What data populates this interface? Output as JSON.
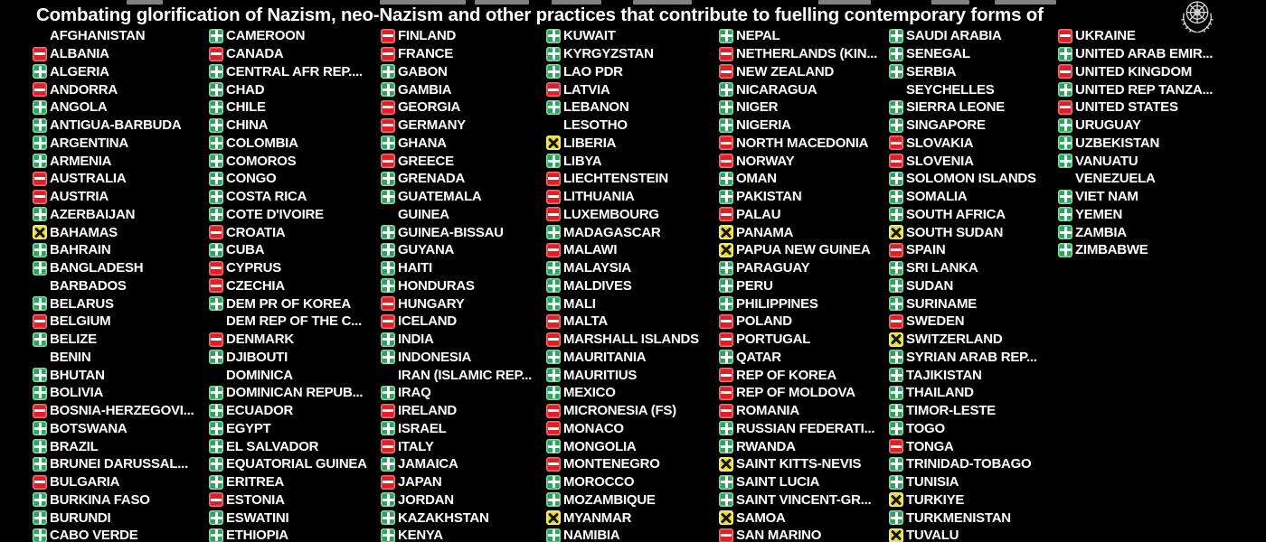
{
  "title": "Combating glorification of Nazism, neo-Nazism and other practices that contribute to fuelling contemporary forms of",
  "icons": {
    "yes": "green-plus-icon",
    "no": "red-minus-icon",
    "abstain": "yellow-x-icon",
    "logo": "un-emblem-icon"
  },
  "colors": {
    "background": "#000000",
    "text": "#ffffff",
    "yes": "#2aa45c",
    "no": "#de1f26",
    "abstain": "#e8df2e"
  },
  "columns": [
    {
      "rows": [
        {
          "name": "AFGHANISTAN",
          "vote": "none"
        },
        {
          "name": "ALBANIA",
          "vote": "no"
        },
        {
          "name": "ALGERIA",
          "vote": "yes"
        },
        {
          "name": "ANDORRA",
          "vote": "no"
        },
        {
          "name": "ANGOLA",
          "vote": "yes"
        },
        {
          "name": "ANTIGUA-BARBUDA",
          "vote": "yes"
        },
        {
          "name": "ARGENTINA",
          "vote": "yes"
        },
        {
          "name": "ARMENIA",
          "vote": "yes"
        },
        {
          "name": "AUSTRALIA",
          "vote": "no"
        },
        {
          "name": "AUSTRIA",
          "vote": "no"
        },
        {
          "name": "AZERBAIJAN",
          "vote": "yes"
        },
        {
          "name": "BAHAMAS",
          "vote": "abstain"
        },
        {
          "name": "BAHRAIN",
          "vote": "yes"
        },
        {
          "name": "BANGLADESH",
          "vote": "yes"
        },
        {
          "name": "BARBADOS",
          "vote": "none"
        },
        {
          "name": "BELARUS",
          "vote": "yes"
        },
        {
          "name": "BELGIUM",
          "vote": "no"
        },
        {
          "name": "BELIZE",
          "vote": "yes"
        },
        {
          "name": "BENIN",
          "vote": "none"
        },
        {
          "name": "BHUTAN",
          "vote": "yes"
        },
        {
          "name": "BOLIVIA",
          "vote": "yes"
        },
        {
          "name": "BOSNIA-HERZEGOVI...",
          "vote": "no"
        },
        {
          "name": "BOTSWANA",
          "vote": "yes"
        },
        {
          "name": "BRAZIL",
          "vote": "yes"
        },
        {
          "name": "BRUNEI DARUSSAL...",
          "vote": "yes"
        },
        {
          "name": "BULGARIA",
          "vote": "no"
        },
        {
          "name": "BURKINA FASO",
          "vote": "yes"
        },
        {
          "name": "BURUNDI",
          "vote": "yes"
        },
        {
          "name": "CABO VERDE",
          "vote": "yes"
        }
      ]
    },
    {
      "rows": [
        {
          "name": "CAMEROON",
          "vote": "yes"
        },
        {
          "name": "CANADA",
          "vote": "no"
        },
        {
          "name": "CENTRAL AFR REP....",
          "vote": "yes"
        },
        {
          "name": "CHAD",
          "vote": "yes"
        },
        {
          "name": "CHILE",
          "vote": "yes"
        },
        {
          "name": "CHINA",
          "vote": "yes"
        },
        {
          "name": "COLOMBIA",
          "vote": "yes"
        },
        {
          "name": "COMOROS",
          "vote": "yes"
        },
        {
          "name": "CONGO",
          "vote": "yes"
        },
        {
          "name": "COSTA RICA",
          "vote": "yes"
        },
        {
          "name": "COTE D'IVOIRE",
          "vote": "yes"
        },
        {
          "name": "CROATIA",
          "vote": "no"
        },
        {
          "name": "CUBA",
          "vote": "yes"
        },
        {
          "name": "CYPRUS",
          "vote": "no"
        },
        {
          "name": "CZECHIA",
          "vote": "no"
        },
        {
          "name": "DEM PR OF KOREA",
          "vote": "yes"
        },
        {
          "name": "DEM REP OF THE C...",
          "vote": "none"
        },
        {
          "name": "DENMARK",
          "vote": "no"
        },
        {
          "name": "DJIBOUTI",
          "vote": "yes"
        },
        {
          "name": "DOMINICA",
          "vote": "none"
        },
        {
          "name": "DOMINICAN REPUB...",
          "vote": "yes"
        },
        {
          "name": "ECUADOR",
          "vote": "yes"
        },
        {
          "name": "EGYPT",
          "vote": "yes"
        },
        {
          "name": "EL SALVADOR",
          "vote": "yes"
        },
        {
          "name": "EQUATORIAL GUINEA",
          "vote": "yes"
        },
        {
          "name": "ERITREA",
          "vote": "yes"
        },
        {
          "name": "ESTONIA",
          "vote": "no"
        },
        {
          "name": "ESWATINI",
          "vote": "yes"
        },
        {
          "name": "ETHIOPIA",
          "vote": "yes"
        }
      ]
    },
    {
      "rows": [
        {
          "name": "FINLAND",
          "vote": "no"
        },
        {
          "name": "FRANCE",
          "vote": "no"
        },
        {
          "name": "GABON",
          "vote": "yes"
        },
        {
          "name": "GAMBIA",
          "vote": "yes"
        },
        {
          "name": "GEORGIA",
          "vote": "no"
        },
        {
          "name": "GERMANY",
          "vote": "no"
        },
        {
          "name": "GHANA",
          "vote": "yes"
        },
        {
          "name": "GREECE",
          "vote": "no"
        },
        {
          "name": "GRENADA",
          "vote": "yes"
        },
        {
          "name": "GUATEMALA",
          "vote": "yes"
        },
        {
          "name": "GUINEA",
          "vote": "none"
        },
        {
          "name": "GUINEA-BISSAU",
          "vote": "yes"
        },
        {
          "name": "GUYANA",
          "vote": "yes"
        },
        {
          "name": "HAITI",
          "vote": "yes"
        },
        {
          "name": "HONDURAS",
          "vote": "yes"
        },
        {
          "name": "HUNGARY",
          "vote": "no"
        },
        {
          "name": "ICELAND",
          "vote": "no"
        },
        {
          "name": "INDIA",
          "vote": "yes"
        },
        {
          "name": "INDONESIA",
          "vote": "yes"
        },
        {
          "name": "IRAN (ISLAMIC REP...",
          "vote": "none"
        },
        {
          "name": "IRAQ",
          "vote": "yes"
        },
        {
          "name": "IRELAND",
          "vote": "no"
        },
        {
          "name": "ISRAEL",
          "vote": "yes"
        },
        {
          "name": "ITALY",
          "vote": "no"
        },
        {
          "name": "JAMAICA",
          "vote": "yes"
        },
        {
          "name": "JAPAN",
          "vote": "no"
        },
        {
          "name": "JORDAN",
          "vote": "yes"
        },
        {
          "name": "KAZAKHSTAN",
          "vote": "yes"
        },
        {
          "name": "KENYA",
          "vote": "yes"
        }
      ]
    },
    {
      "rows": [
        {
          "name": "KUWAIT",
          "vote": "yes"
        },
        {
          "name": "KYRGYZSTAN",
          "vote": "yes"
        },
        {
          "name": "LAO PDR",
          "vote": "yes"
        },
        {
          "name": "LATVIA",
          "vote": "no"
        },
        {
          "name": "LEBANON",
          "vote": "yes"
        },
        {
          "name": "LESOTHO",
          "vote": "none"
        },
        {
          "name": "LIBERIA",
          "vote": "abstain"
        },
        {
          "name": "LIBYA",
          "vote": "yes"
        },
        {
          "name": "LIECHTENSTEIN",
          "vote": "no"
        },
        {
          "name": "LITHUANIA",
          "vote": "no"
        },
        {
          "name": "LUXEMBOURG",
          "vote": "no"
        },
        {
          "name": "MADAGASCAR",
          "vote": "yes"
        },
        {
          "name": "MALAWI",
          "vote": "no"
        },
        {
          "name": "MALAYSIA",
          "vote": "yes"
        },
        {
          "name": "MALDIVES",
          "vote": "yes"
        },
        {
          "name": "MALI",
          "vote": "yes"
        },
        {
          "name": "MALTA",
          "vote": "no"
        },
        {
          "name": "MARSHALL ISLANDS",
          "vote": "no"
        },
        {
          "name": "MAURITANIA",
          "vote": "yes"
        },
        {
          "name": "MAURITIUS",
          "vote": "yes"
        },
        {
          "name": "MEXICO",
          "vote": "yes"
        },
        {
          "name": "MICRONESIA (FS)",
          "vote": "no"
        },
        {
          "name": "MONACO",
          "vote": "no"
        },
        {
          "name": "MONGOLIA",
          "vote": "yes"
        },
        {
          "name": "MONTENEGRO",
          "vote": "no"
        },
        {
          "name": "MOROCCO",
          "vote": "yes"
        },
        {
          "name": "MOZAMBIQUE",
          "vote": "yes"
        },
        {
          "name": "MYANMAR",
          "vote": "abstain"
        },
        {
          "name": "NAMIBIA",
          "vote": "yes"
        }
      ]
    },
    {
      "rows": [
        {
          "name": "NEPAL",
          "vote": "yes"
        },
        {
          "name": "NETHERLANDS (KIN...",
          "vote": "no"
        },
        {
          "name": "NEW ZEALAND",
          "vote": "no"
        },
        {
          "name": "NICARAGUA",
          "vote": "yes"
        },
        {
          "name": "NIGER",
          "vote": "yes"
        },
        {
          "name": "NIGERIA",
          "vote": "yes"
        },
        {
          "name": "NORTH MACEDONIA",
          "vote": "no"
        },
        {
          "name": "NORWAY",
          "vote": "no"
        },
        {
          "name": "OMAN",
          "vote": "yes"
        },
        {
          "name": "PAKISTAN",
          "vote": "yes"
        },
        {
          "name": "PALAU",
          "vote": "no"
        },
        {
          "name": "PANAMA",
          "vote": "abstain"
        },
        {
          "name": "PAPUA NEW GUINEA",
          "vote": "abstain"
        },
        {
          "name": "PARAGUAY",
          "vote": "yes"
        },
        {
          "name": "PERU",
          "vote": "yes"
        },
        {
          "name": "PHILIPPINES",
          "vote": "yes"
        },
        {
          "name": "POLAND",
          "vote": "no"
        },
        {
          "name": "PORTUGAL",
          "vote": "no"
        },
        {
          "name": "QATAR",
          "vote": "yes"
        },
        {
          "name": "REP OF KOREA",
          "vote": "no"
        },
        {
          "name": "REP OF MOLDOVA",
          "vote": "no"
        },
        {
          "name": "ROMANIA",
          "vote": "no"
        },
        {
          "name": "RUSSIAN FEDERATI...",
          "vote": "yes"
        },
        {
          "name": "RWANDA",
          "vote": "yes"
        },
        {
          "name": "SAINT KITTS-NEVIS",
          "vote": "abstain"
        },
        {
          "name": "SAINT LUCIA",
          "vote": "yes"
        },
        {
          "name": "SAINT VINCENT-GR...",
          "vote": "yes"
        },
        {
          "name": "SAMOA",
          "vote": "abstain"
        },
        {
          "name": "SAN MARINO",
          "vote": "no"
        }
      ]
    },
    {
      "rows": [
        {
          "name": "SAUDI ARABIA",
          "vote": "yes"
        },
        {
          "name": "SENEGAL",
          "vote": "yes"
        },
        {
          "name": "SERBIA",
          "vote": "yes"
        },
        {
          "name": "SEYCHELLES",
          "vote": "none"
        },
        {
          "name": "SIERRA LEONE",
          "vote": "yes"
        },
        {
          "name": "SINGAPORE",
          "vote": "yes"
        },
        {
          "name": "SLOVAKIA",
          "vote": "no"
        },
        {
          "name": "SLOVENIA",
          "vote": "no"
        },
        {
          "name": "SOLOMON ISLANDS",
          "vote": "yes"
        },
        {
          "name": "SOMALIA",
          "vote": "yes"
        },
        {
          "name": "SOUTH AFRICA",
          "vote": "yes"
        },
        {
          "name": "SOUTH SUDAN",
          "vote": "abstain"
        },
        {
          "name": "SPAIN",
          "vote": "no"
        },
        {
          "name": "SRI LANKA",
          "vote": "yes"
        },
        {
          "name": "SUDAN",
          "vote": "yes"
        },
        {
          "name": "SURINAME",
          "vote": "yes"
        },
        {
          "name": "SWEDEN",
          "vote": "no"
        },
        {
          "name": "SWITZERLAND",
          "vote": "abstain"
        },
        {
          "name": "SYRIAN ARAB REP...",
          "vote": "yes"
        },
        {
          "name": "TAJIKISTAN",
          "vote": "yes"
        },
        {
          "name": "THAILAND",
          "vote": "yes"
        },
        {
          "name": "TIMOR-LESTE",
          "vote": "yes"
        },
        {
          "name": "TOGO",
          "vote": "yes"
        },
        {
          "name": "TONGA",
          "vote": "no"
        },
        {
          "name": "TRINIDAD-TOBAGO",
          "vote": "yes"
        },
        {
          "name": "TUNISIA",
          "vote": "yes"
        },
        {
          "name": "TURKIYE",
          "vote": "abstain"
        },
        {
          "name": "TURKMENISTAN",
          "vote": "yes"
        },
        {
          "name": "TUVALU",
          "vote": "abstain"
        }
      ]
    },
    {
      "rows": [
        {
          "name": "UKRAINE",
          "vote": "no"
        },
        {
          "name": "UNITED ARAB EMIR...",
          "vote": "yes"
        },
        {
          "name": "UNITED KINGDOM",
          "vote": "no"
        },
        {
          "name": "UNITED REP TANZA...",
          "vote": "yes"
        },
        {
          "name": "UNITED STATES",
          "vote": "no"
        },
        {
          "name": "URUGUAY",
          "vote": "yes"
        },
        {
          "name": "UZBEKISTAN",
          "vote": "yes"
        },
        {
          "name": "VANUATU",
          "vote": "yes"
        },
        {
          "name": "VENEZUELA",
          "vote": "none"
        },
        {
          "name": "VIET NAM",
          "vote": "yes"
        },
        {
          "name": "YEMEN",
          "vote": "yes"
        },
        {
          "name": "ZAMBIA",
          "vote": "yes"
        },
        {
          "name": "ZIMBABWE",
          "vote": "yes"
        }
      ]
    }
  ]
}
